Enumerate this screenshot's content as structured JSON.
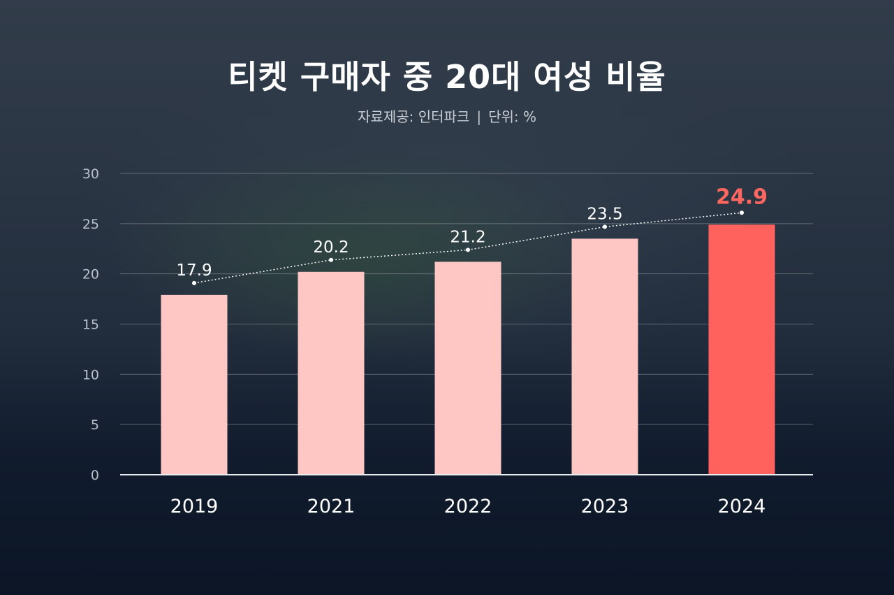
{
  "title": "티켓 구매자 중 20대 여성 비율",
  "subtitle": {
    "source": "자료제공: 인터파크",
    "separator": "|",
    "unit": "단위: %"
  },
  "colors": {
    "bar": "#ffc7c4",
    "highlight_bar": "#ff625c",
    "highlight_label": "#ff6660",
    "trend_line": "#ffffff"
  },
  "chart_data": {
    "type": "bar",
    "title": "티켓 구매자 중 20대 여성 비율",
    "categories": [
      "2019",
      "2021",
      "2022",
      "2023",
      "2024"
    ],
    "values": [
      17.9,
      20.2,
      21.2,
      23.5,
      24.9
    ],
    "value_labels": [
      "17.9",
      "20.2",
      "21.2",
      "23.5",
      "24.9"
    ],
    "highlight_index": 4,
    "ylim": [
      0,
      30
    ],
    "yticks": [
      0,
      5,
      10,
      15,
      20,
      25,
      30
    ],
    "grid": true,
    "trend_line": "dotted",
    "xlabel": "",
    "ylabel": ""
  }
}
